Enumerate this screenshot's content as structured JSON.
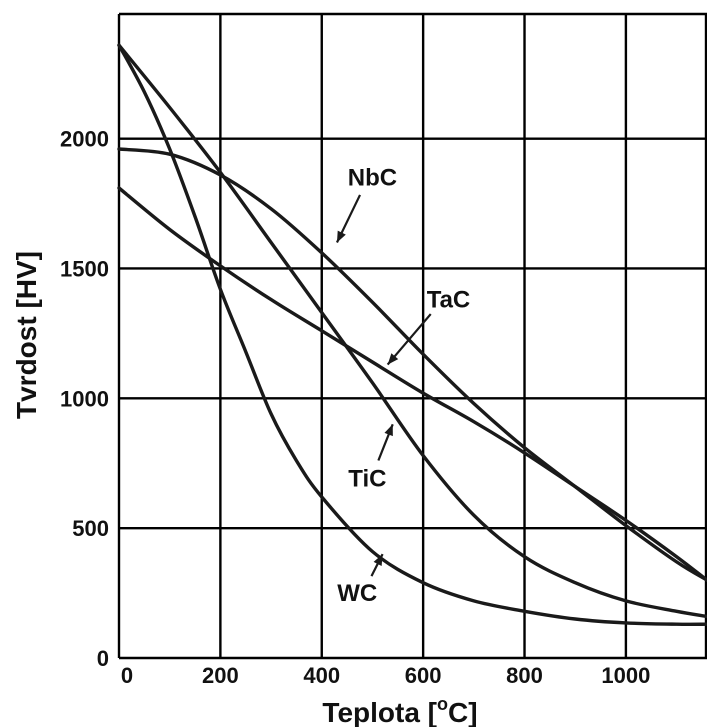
{
  "chart_data": {
    "type": "line",
    "title": "",
    "xlabel": "Teplota [",
    "xlabel_sup": "o",
    "xlabel_unit": "C]",
    "ylabel": "Tvrdost [HV]",
    "xlim": [
      0,
      1160
    ],
    "ylim": [
      0,
      2480
    ],
    "grid": true,
    "x_ticks": [
      0,
      200,
      400,
      600,
      800,
      1000
    ],
    "x_tick_labels": [
      "0",
      "200",
      "400",
      "600",
      "800",
      "1000"
    ],
    "y_ticks": [
      0,
      500,
      1000,
      1500,
      2000
    ],
    "y_tick_labels": [
      "0",
      "500",
      "1000",
      "1500",
      "2000"
    ],
    "series": [
      {
        "name": "NbC",
        "x": [
          0,
          100,
          200,
          300,
          400,
          500,
          600,
          700,
          800,
          900,
          1000,
          1100,
          1160
        ],
        "y": [
          1960,
          1940,
          1860,
          1730,
          1560,
          1370,
          1170,
          980,
          810,
          660,
          510,
          370,
          300
        ]
      },
      {
        "name": "TaC",
        "x": [
          0,
          100,
          200,
          300,
          400,
          500,
          600,
          700,
          800,
          900,
          1000,
          1100,
          1160
        ],
        "y": [
          1810,
          1650,
          1510,
          1380,
          1260,
          1140,
          1020,
          910,
          790,
          660,
          530,
          390,
          300
        ]
      },
      {
        "name": "TiC",
        "x": [
          0,
          100,
          200,
          300,
          400,
          500,
          600,
          700,
          800,
          900,
          1000,
          1100,
          1160
        ],
        "y": [
          2360,
          2120,
          1870,
          1600,
          1330,
          1060,
          780,
          550,
          390,
          290,
          220,
          180,
          160
        ]
      },
      {
        "name": "WC",
        "x": [
          0,
          50,
          100,
          150,
          200,
          250,
          300,
          350,
          400,
          500,
          600,
          700,
          800,
          900,
          1000,
          1100,
          1160
        ],
        "y": [
          2360,
          2180,
          1960,
          1700,
          1420,
          1180,
          940,
          760,
          620,
          410,
          290,
          220,
          180,
          150,
          135,
          130,
          130
        ]
      }
    ],
    "annotations": [
      {
        "text": "NbC",
        "label_x": 500,
        "label_y": 1820,
        "point_x": 430,
        "point_y": 1600
      },
      {
        "text": "TaC",
        "label_x": 650,
        "label_y": 1350,
        "point_x": 530,
        "point_y": 1130
      },
      {
        "text": "TiC",
        "label_x": 490,
        "label_y": 660,
        "point_x": 540,
        "point_y": 900
      },
      {
        "text": "WC",
        "label_x": 470,
        "label_y": 220,
        "point_x": 520,
        "point_y": 400
      }
    ]
  }
}
